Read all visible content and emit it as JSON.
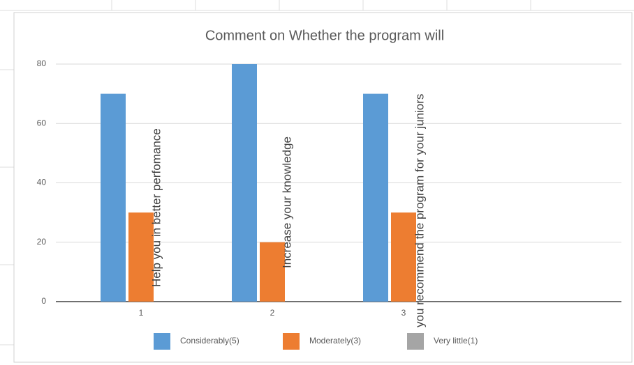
{
  "chart_data": {
    "type": "bar",
    "title": "Comment on Whether the program will",
    "categories": [
      "1",
      "2",
      "3"
    ],
    "series": [
      {
        "name": "Considerably(5)",
        "color": "#5b9bd5",
        "values": [
          70,
          80,
          70
        ]
      },
      {
        "name": "Moderately(3)",
        "color": "#ed7d31",
        "values": [
          30,
          20,
          30
        ]
      },
      {
        "name": "Very little(1)",
        "color": "#a5a5a5",
        "values": [
          0,
          0,
          0
        ]
      }
    ],
    "annotations": [
      "Help you in better perfomance",
      "Increase your knowledge",
      "you recommend the program for your juniors"
    ],
    "ylim": [
      0,
      80
    ],
    "yticks": [
      0,
      20,
      40,
      60,
      80
    ],
    "grid": true,
    "legend": "bottom"
  }
}
